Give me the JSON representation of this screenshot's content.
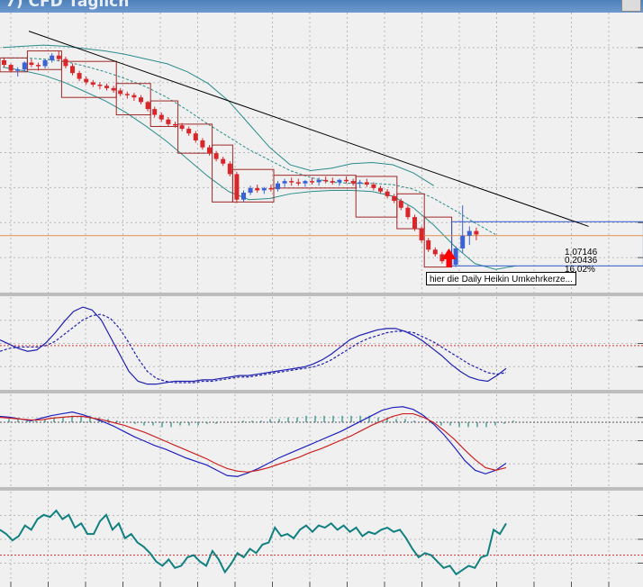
{
  "window": {
    "title": "7) CFD Täglich"
  },
  "chart_data": [
    {
      "panel": "price",
      "type": "candlestick",
      "style": "heikin-ashi",
      "ohlc": [
        [
          1.185,
          1.187,
          1.179,
          1.181
        ],
        [
          1.181,
          1.182,
          1.175,
          1.176
        ],
        [
          1.176,
          1.179,
          1.171,
          1.177
        ],
        [
          1.177,
          1.184,
          1.175,
          1.183
        ],
        [
          1.183,
          1.186,
          1.179,
          1.181
        ],
        [
          1.181,
          1.183,
          1.176,
          1.18
        ],
        [
          1.18,
          1.186,
          1.178,
          1.185
        ],
        [
          1.185,
          1.191,
          1.183,
          1.189
        ],
        [
          1.189,
          1.193,
          1.184,
          1.186
        ],
        [
          1.186,
          1.188,
          1.178,
          1.18
        ],
        [
          1.18,
          1.182,
          1.172,
          1.174
        ],
        [
          1.174,
          1.176,
          1.167,
          1.169
        ],
        [
          1.169,
          1.171,
          1.164,
          1.166
        ],
        [
          1.166,
          1.168,
          1.162,
          1.164
        ],
        [
          1.164,
          1.166,
          1.16,
          1.163
        ],
        [
          1.163,
          1.165,
          1.159,
          1.161
        ],
        [
          1.161,
          1.163,
          1.157,
          1.159
        ],
        [
          1.159,
          1.161,
          1.154,
          1.156
        ],
        [
          1.156,
          1.158,
          1.152,
          1.155
        ],
        [
          1.155,
          1.157,
          1.15,
          1.153
        ],
        [
          1.153,
          1.155,
          1.147,
          1.149
        ],
        [
          1.149,
          1.15,
          1.141,
          1.143
        ],
        [
          1.143,
          1.145,
          1.136,
          1.138
        ],
        [
          1.138,
          1.14,
          1.132,
          1.134
        ],
        [
          1.134,
          1.136,
          1.128,
          1.13
        ],
        [
          1.13,
          1.132,
          1.127,
          1.129
        ],
        [
          1.129,
          1.131,
          1.124,
          1.126
        ],
        [
          1.126,
          1.128,
          1.12,
          1.122
        ],
        [
          1.122,
          1.124,
          1.114,
          1.116
        ],
        [
          1.116,
          1.118,
          1.108,
          1.11
        ],
        [
          1.11,
          1.112,
          1.103,
          1.105
        ],
        [
          1.105,
          1.107,
          1.098,
          1.1
        ],
        [
          1.1,
          1.102,
          1.094,
          1.096
        ],
        [
          1.096,
          1.098,
          1.085,
          1.087
        ],
        [
          1.087,
          1.089,
          1.062,
          1.065
        ],
        [
          1.065,
          1.073,
          1.063,
          1.071
        ],
        [
          1.071,
          1.077,
          1.069,
          1.075
        ],
        [
          1.075,
          1.078,
          1.071,
          1.073
        ],
        [
          1.073,
          1.076,
          1.07,
          1.075
        ],
        [
          1.075,
          1.078,
          1.072,
          1.074
        ],
        [
          1.074,
          1.081,
          1.072,
          1.079
        ],
        [
          1.079,
          1.083,
          1.076,
          1.081
        ],
        [
          1.081,
          1.084,
          1.077,
          1.08
        ],
        [
          1.08,
          1.083,
          1.077,
          1.079
        ],
        [
          1.079,
          1.082,
          1.076,
          1.081
        ],
        [
          1.081,
          1.084,
          1.078,
          1.08
        ],
        [
          1.08,
          1.084,
          1.077,
          1.082
        ],
        [
          1.082,
          1.085,
          1.079,
          1.081
        ],
        [
          1.081,
          1.084,
          1.078,
          1.08
        ],
        [
          1.08,
          1.083,
          1.077,
          1.082
        ],
        [
          1.082,
          1.085,
          1.079,
          1.081
        ],
        [
          1.081,
          1.083,
          1.077,
          1.079
        ],
        [
          1.079,
          1.082,
          1.075,
          1.08
        ],
        [
          1.08,
          1.083,
          1.076,
          1.078
        ],
        [
          1.078,
          1.08,
          1.073,
          1.075
        ],
        [
          1.075,
          1.077,
          1.07,
          1.072
        ],
        [
          1.072,
          1.074,
          1.066,
          1.068
        ],
        [
          1.068,
          1.07,
          1.062,
          1.064
        ],
        [
          1.064,
          1.066,
          1.056,
          1.058
        ],
        [
          1.058,
          1.06,
          1.048,
          1.05
        ],
        [
          1.05,
          1.052,
          1.038,
          1.04
        ],
        [
          1.04,
          1.042,
          1.028,
          1.03
        ],
        [
          1.03,
          1.032,
          1.02,
          1.022
        ],
        [
          1.022,
          1.024,
          1.016,
          1.018
        ],
        [
          1.018,
          1.02,
          1.01,
          1.012
        ],
        [
          1.012,
          1.014,
          1.007,
          1.009
        ],
        [
          1.009,
          1.025,
          1.007,
          1.023
        ],
        [
          1.023,
          1.06,
          1.019,
          1.034
        ],
        [
          1.034,
          1.042,
          1.026,
          1.038
        ],
        [
          1.038,
          1.041,
          1.03,
          1.035
        ]
      ],
      "trendline": [
        [
          0,
          1.21
        ],
        [
          86,
          1.042
        ]
      ],
      "bollinger_upper": [
        1.196,
        1.197,
        1.198,
        1.197,
        1.195,
        1.193,
        1.19,
        1.186,
        1.182,
        1.175,
        1.165,
        1.15,
        1.13,
        1.11,
        1.095,
        1.09,
        1.092,
        1.096,
        1.097,
        1.095,
        1.088,
        1.077
      ],
      "bollinger_mid": [
        1.187,
        1.187,
        1.186,
        1.184,
        1.18,
        1.175,
        1.169,
        1.162,
        1.153,
        1.142,
        1.13,
        1.119,
        1.108,
        1.099,
        1.09,
        1.084,
        1.08,
        1.079,
        1.079,
        1.078,
        1.074,
        1.066,
        1.056,
        1.045,
        1.035
      ],
      "bollinger_lower": [
        1.179,
        1.176,
        1.172,
        1.166,
        1.158,
        1.15,
        1.14,
        1.128,
        1.115,
        1.1,
        1.085,
        1.072,
        1.065,
        1.066,
        1.07,
        1.072,
        1.073,
        1.073,
        1.072,
        1.068,
        1.058,
        1.043,
        1.025,
        1.01,
        1.005,
        1.008
      ],
      "range_channels": [
        {
          "from": 0,
          "to": 4,
          "high": 1.187,
          "low": 1.175
        },
        {
          "from": 4,
          "to": 9,
          "high": 1.193,
          "low": 1.177
        },
        {
          "from": 9,
          "to": 17,
          "high": 1.184,
          "low": 1.153
        },
        {
          "from": 17,
          "to": 22,
          "high": 1.165,
          "low": 1.138
        },
        {
          "from": 22,
          "to": 26,
          "high": 1.15,
          "low": 1.128
        },
        {
          "from": 26,
          "to": 31,
          "high": 1.13,
          "low": 1.105
        },
        {
          "from": 31,
          "to": 34,
          "high": 1.112,
          "low": 1.063
        },
        {
          "from": 34,
          "to": 40,
          "high": 1.091,
          "low": 1.063
        },
        {
          "from": 40,
          "to": 52,
          "high": 1.086,
          "low": 1.075
        },
        {
          "from": 52,
          "to": 58,
          "high": 1.085,
          "low": 1.05
        },
        {
          "from": 58,
          "to": 62,
          "high": 1.07,
          "low": 1.04
        },
        {
          "from": 62,
          "to": 66,
          "high": 1.05,
          "low": 1.007
        }
      ],
      "fib_box": {
        "from": 66,
        "to": 94,
        "high": 1.046,
        "low": 1.008
      },
      "hline": 1.034,
      "labels": [
        "1,07146",
        "0,20436",
        "16,02%"
      ],
      "annotation": "hier die Daily Heikin Umkehrkerze...",
      "marker_index": 65,
      "xlim": [
        0,
        94
      ],
      "ylim": [
        0.985,
        1.226
      ],
      "colors": {
        "bull": "#3a62d4",
        "bear": "#d8262a",
        "trend": "#000000",
        "bands": "#2a8d8b",
        "channel": "#a02828",
        "box": "#3058c8",
        "hline": "#e09050",
        "arrow": "#ff0000"
      }
    },
    {
      "panel": "stochastic",
      "type": "line",
      "series": [
        {
          "style": "solid",
          "color": "#2020b0",
          "values": [
            50,
            47,
            44,
            42,
            43,
            48,
            55,
            63,
            70,
            73,
            71,
            64,
            52,
            40,
            28,
            21,
            19,
            19,
            20,
            21,
            21,
            21,
            22,
            22,
            23,
            24,
            25,
            25,
            26,
            27,
            28,
            29,
            30,
            31,
            33,
            36,
            40,
            45,
            50,
            53,
            55,
            57,
            58,
            58,
            56,
            53,
            49,
            44,
            39,
            33,
            28,
            24,
            22,
            21,
            25,
            30
          ]
        },
        {
          "style": "dashed",
          "color": "#2020b0",
          "values": [
            42,
            44,
            45,
            45,
            45,
            46,
            49,
            54,
            59,
            64,
            67,
            68,
            65,
            58,
            48,
            37,
            28,
            23,
            21,
            20,
            20,
            20,
            21,
            21,
            22,
            23,
            24,
            24,
            25,
            26,
            27,
            28,
            29,
            30,
            31,
            33,
            36,
            40,
            44,
            48,
            51,
            53,
            55,
            56,
            56,
            55,
            52,
            49,
            45,
            41,
            37,
            33,
            30,
            27,
            26,
            27
          ]
        }
      ],
      "hline": 46,
      "ylim": [
        15,
        80
      ],
      "colors": {
        "hline": "#cc3333"
      }
    },
    {
      "panel": "macd",
      "type": "line",
      "histogram": [
        2,
        2,
        2,
        2,
        2,
        3,
        3,
        4,
        4,
        4,
        3,
        2,
        1,
        0,
        -1,
        -2,
        -2,
        -3,
        -3,
        -2,
        -2,
        -2,
        -1,
        -1,
        0,
        0,
        1,
        1,
        1,
        2,
        2,
        3,
        3,
        4,
        4,
        4,
        4,
        4,
        4,
        4,
        4,
        3,
        3,
        2,
        2,
        1,
        0,
        -1,
        -2,
        -2,
        -3,
        -3,
        -3,
        -3,
        -2,
        -1,
        1
      ],
      "series": [
        {
          "name": "",
          "color": "#2020c0",
          "values": [
            -5,
            -6,
            -8,
            -10,
            -7,
            -4,
            -2,
            0,
            -3,
            -7,
            -11,
            -16,
            -22,
            -28,
            -33,
            -38,
            -42,
            -47,
            -52,
            -56,
            -60,
            -66,
            -72,
            -73,
            -69,
            -64,
            -58,
            -52,
            -47,
            -42,
            -37,
            -32,
            -27,
            -22,
            -16,
            -10,
            -4,
            2,
            5,
            6,
            3,
            -4,
            -14,
            -26,
            -40,
            -55,
            -66,
            -70,
            -66,
            -58
          ]
        },
        {
          "name": "",
          "color": "#cc2222",
          "values": [
            -6,
            -7,
            -8,
            -9,
            -9,
            -7,
            -6,
            -5,
            -5,
            -7,
            -9,
            -12,
            -15,
            -19,
            -23,
            -28,
            -33,
            -38,
            -43,
            -48,
            -53,
            -59,
            -64,
            -67,
            -68,
            -66,
            -63,
            -59,
            -55,
            -51,
            -46,
            -42,
            -37,
            -32,
            -27,
            -21,
            -15,
            -10,
            -5,
            -2,
            -2,
            -6,
            -12,
            -21,
            -31,
            -43,
            -54,
            -63,
            -66,
            -63
          ]
        }
      ],
      "ylim": [
        -85,
        20
      ]
    },
    {
      "panel": "rsi",
      "type": "line",
      "series": [
        {
          "name": "",
          "color": "#128080",
          "values": [
            57,
            55,
            52,
            54,
            59,
            57,
            62,
            64,
            63,
            66,
            62,
            64,
            58,
            60,
            55,
            55,
            61,
            64,
            57,
            60,
            53,
            55,
            51,
            49,
            46,
            42,
            40,
            43,
            39,
            40,
            44,
            45,
            42,
            40,
            47,
            43,
            37,
            41,
            46,
            44,
            48,
            46,
            50,
            51,
            58,
            54,
            55,
            53,
            57,
            59,
            56,
            59,
            58,
            60,
            57,
            59,
            56,
            58,
            54,
            56,
            55,
            57,
            58,
            56,
            57,
            53,
            48,
            44,
            46,
            45,
            42,
            39,
            40,
            36,
            38,
            40,
            39,
            44,
            45,
            57,
            55,
            60
          ]
        }
      ],
      "hline": 45,
      "ylim": [
        30,
        75
      ],
      "colors": {
        "hline": "#cc3333"
      }
    }
  ]
}
